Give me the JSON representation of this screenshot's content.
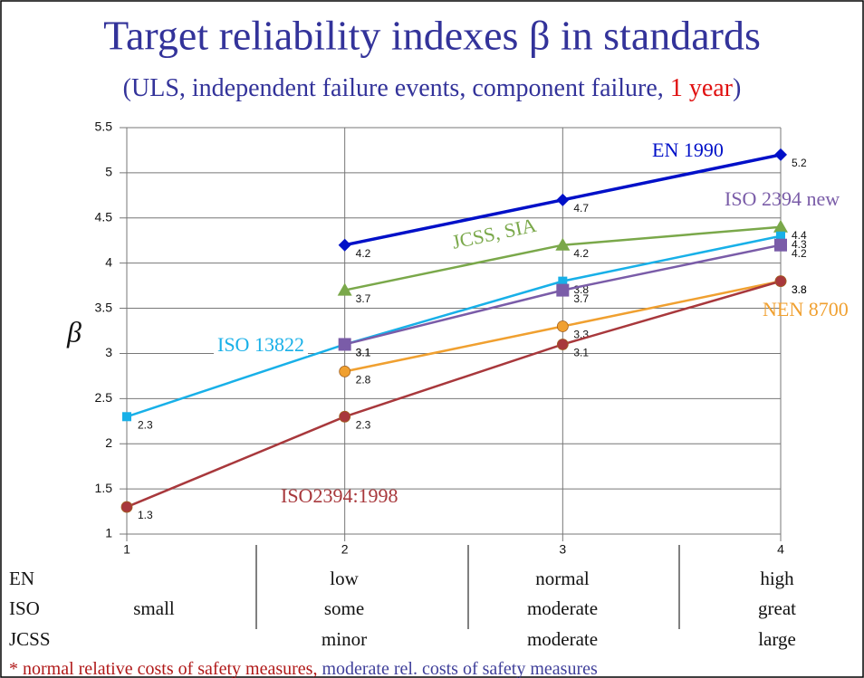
{
  "chart_data": {
    "type": "line",
    "title": "Target reliability indexes β in standards",
    "subtitle_parts": [
      "(ULS, independent failure events, component failure, ",
      "1 year",
      ")"
    ],
    "y_label": "β",
    "x": [
      1,
      2,
      3,
      4
    ],
    "xlim": [
      1,
      4
    ],
    "xticks": [
      1,
      2,
      3,
      4
    ],
    "ylim": [
      1,
      5.5
    ],
    "yticks": [
      1,
      1.5,
      2,
      2.5,
      3,
      3.5,
      4,
      4.5,
      5,
      5.5
    ],
    "grid": true,
    "series": [
      {
        "name": "EN 1990",
        "color": "#0010c8",
        "marker": "diamond",
        "values": [
          null,
          4.2,
          4.7,
          5.2
        ]
      },
      {
        "name": "JCSS, SIA",
        "color": "#7aa84a",
        "marker": "triangle",
        "values": [
          null,
          3.7,
          4.2,
          4.4
        ]
      },
      {
        "name": "ISO 13822",
        "color": "#18b0e8",
        "marker": "square",
        "values": [
          2.3,
          3.1,
          3.8,
          4.3
        ]
      },
      {
        "name": "ISO 2394 new",
        "color": "#7a5ca8",
        "marker": "square",
        "values": [
          null,
          3.1,
          3.7,
          4.2
        ]
      },
      {
        "name": "NEN 8700",
        "color": "#f0a030",
        "marker": "circle",
        "values": [
          null,
          2.8,
          3.3,
          3.8
        ]
      },
      {
        "name": "ISO2394:1998",
        "color": "#a8383c",
        "marker": "circle",
        "values": [
          1.3,
          2.3,
          3.1,
          3.8
        ]
      }
    ]
  },
  "table": {
    "rows": [
      {
        "label": "EN",
        "cells": [
          null,
          "low",
          "normal",
          "high"
        ]
      },
      {
        "label": "ISO",
        "cells": [
          "small",
          "some",
          "moderate",
          "great"
        ]
      },
      {
        "label": "JCSS",
        "cells": [
          null,
          "minor",
          "moderate",
          "large"
        ]
      }
    ]
  },
  "footnote": [
    "* normal relative costs of safety measures,",
    "moderate rel. costs of safety measures"
  ]
}
